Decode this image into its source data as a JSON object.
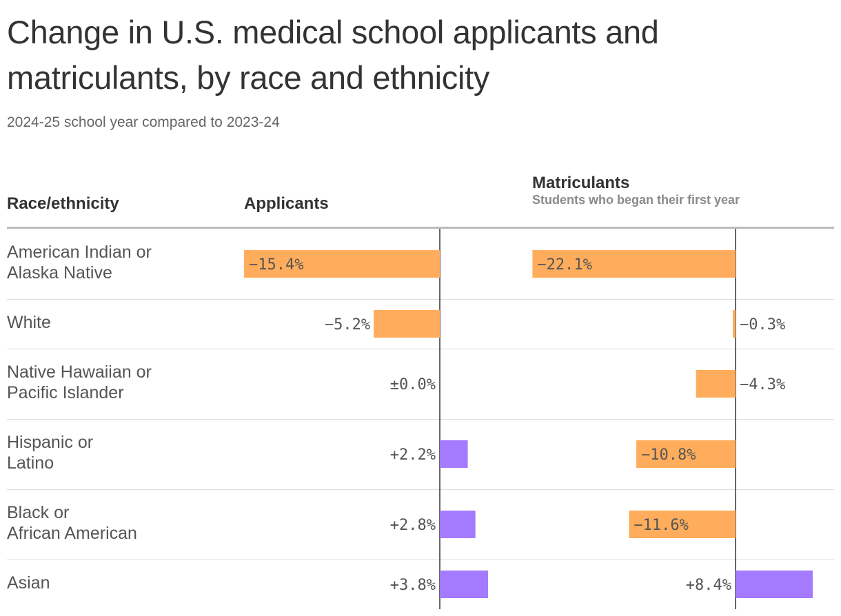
{
  "title": "Change in U.S. medical school applicants and matriculants, by race and ethnicity",
  "subtitle": "2024-25 school year compared to 2023-24",
  "columns": {
    "race": "Race/ethnicity",
    "applicants": "Applicants",
    "matriculants": "Matriculants",
    "matriculants_sub": "Students who began their first year"
  },
  "colors": {
    "negative": "#FFAD5C",
    "positive": "#A47BFF",
    "axis": "#333333",
    "label": "#555555"
  },
  "chart_data": {
    "type": "bar",
    "categories": [
      "American Indian or\nAlaska Native",
      "White",
      "Native Hawaiian or\nPacific Islander",
      "Hispanic or\nLatino",
      "Black or\nAfrican American",
      "Asian"
    ],
    "series": [
      {
        "name": "Applicants",
        "values": [
          -15.4,
          -5.2,
          0.0,
          2.2,
          2.8,
          3.8
        ],
        "labels": [
          "−15.4%",
          "−5.2%",
          "±0.0%",
          "+2.2%",
          "+2.8%",
          "+3.8%"
        ]
      },
      {
        "name": "Matriculants",
        "values": [
          -22.1,
          -0.3,
          -4.3,
          -10.8,
          -11.6,
          8.4
        ],
        "labels": [
          "−22.1%",
          "−0.3%",
          "−4.3%",
          "−10.8%",
          "−11.6%",
          "+8.4%"
        ]
      }
    ],
    "unit": "%"
  }
}
